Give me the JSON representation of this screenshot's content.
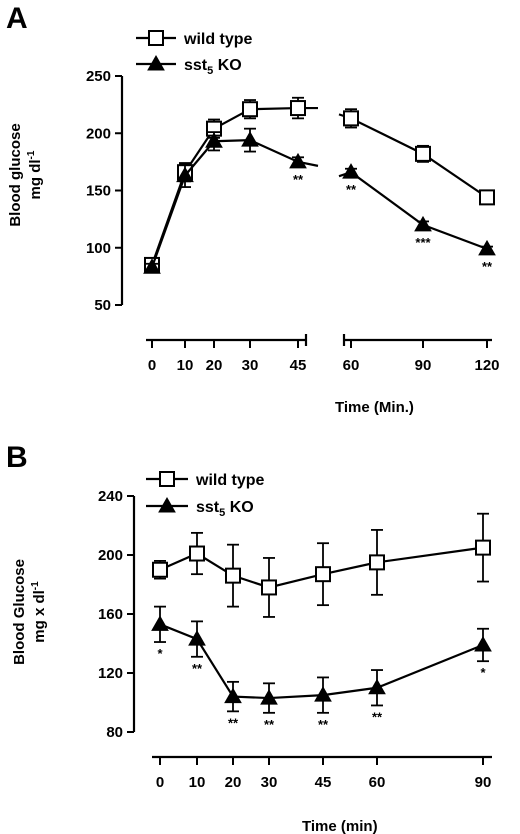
{
  "panels": [
    {
      "label": "A",
      "legend": {
        "wild_type": "wild type",
        "ko_prefix": "sst",
        "ko_sub": "5",
        "ko_suffix": " KO"
      },
      "ylabel_line1": "Blood glucose",
      "ylabel_line2_base": "mg dl",
      "ylabel_line2_sup": "-1",
      "xlabel": "Time (Min.)"
    },
    {
      "label": "B",
      "legend": {
        "wild_type": "wild type",
        "ko_prefix": "sst",
        "ko_sub": "5",
        "ko_suffix": " KO"
      },
      "ylabel_line1": "Blood Glucose",
      "ylabel_line2_base": "mg x dl",
      "ylabel_line2_sup": "-1",
      "xlabel": "Time (min)"
    }
  ],
  "chart_data": [
    {
      "type": "line",
      "panel": "A",
      "x": [
        0,
        10,
        20,
        30,
        45,
        60,
        90,
        120
      ],
      "x_tick_labels": [
        "0",
        "10",
        "20",
        "30",
        "45",
        "60",
        "90",
        "120"
      ],
      "x_axis_break": "between 45 and 60",
      "ylim": [
        50,
        250
      ],
      "yticks": [
        50,
        100,
        150,
        200,
        250
      ],
      "xlabel": "Time (Min.)",
      "ylabel": "Blood glucose mg dl-1",
      "legend_position": "top-left",
      "grid": false,
      "series": [
        {
          "name": "wild type",
          "marker": "open-square",
          "values": [
            85,
            166,
            204,
            221,
            222,
            213,
            182,
            144
          ],
          "error": [
            3,
            8,
            8,
            8,
            9,
            8,
            7,
            5
          ]
        },
        {
          "name": "sst5 KO",
          "marker": "filled-triangle",
          "values": [
            83,
            163,
            193,
            194,
            175,
            166,
            120,
            99
          ],
          "error": [
            3,
            10,
            8,
            10,
            4,
            3,
            3,
            2
          ],
          "significance": [
            "",
            "",
            "",
            "",
            "**",
            "**",
            "***",
            "**"
          ]
        }
      ]
    },
    {
      "type": "line",
      "panel": "B",
      "x": [
        0,
        10,
        20,
        30,
        45,
        60,
        90
      ],
      "x_tick_labels": [
        "0",
        "10",
        "20",
        "30",
        "45",
        "60",
        "90"
      ],
      "ylim": [
        80,
        240
      ],
      "yticks": [
        80,
        120,
        160,
        200,
        240
      ],
      "xlabel": "Time (min)",
      "ylabel": "Blood Glucose mg x dl-1",
      "legend_position": "top-left",
      "grid": false,
      "series": [
        {
          "name": "wild type",
          "marker": "open-square",
          "values": [
            190,
            201,
            186,
            178,
            187,
            195,
            205
          ],
          "error": [
            6,
            14,
            21,
            20,
            21,
            22,
            23
          ]
        },
        {
          "name": "sst5 KO",
          "marker": "filled-triangle",
          "values": [
            153,
            143,
            104,
            103,
            105,
            110,
            139
          ],
          "error": [
            12,
            12,
            10,
            10,
            12,
            12,
            11
          ],
          "significance": [
            "*",
            "**",
            "**",
            "**",
            "**",
            "**",
            "*"
          ]
        }
      ]
    }
  ]
}
